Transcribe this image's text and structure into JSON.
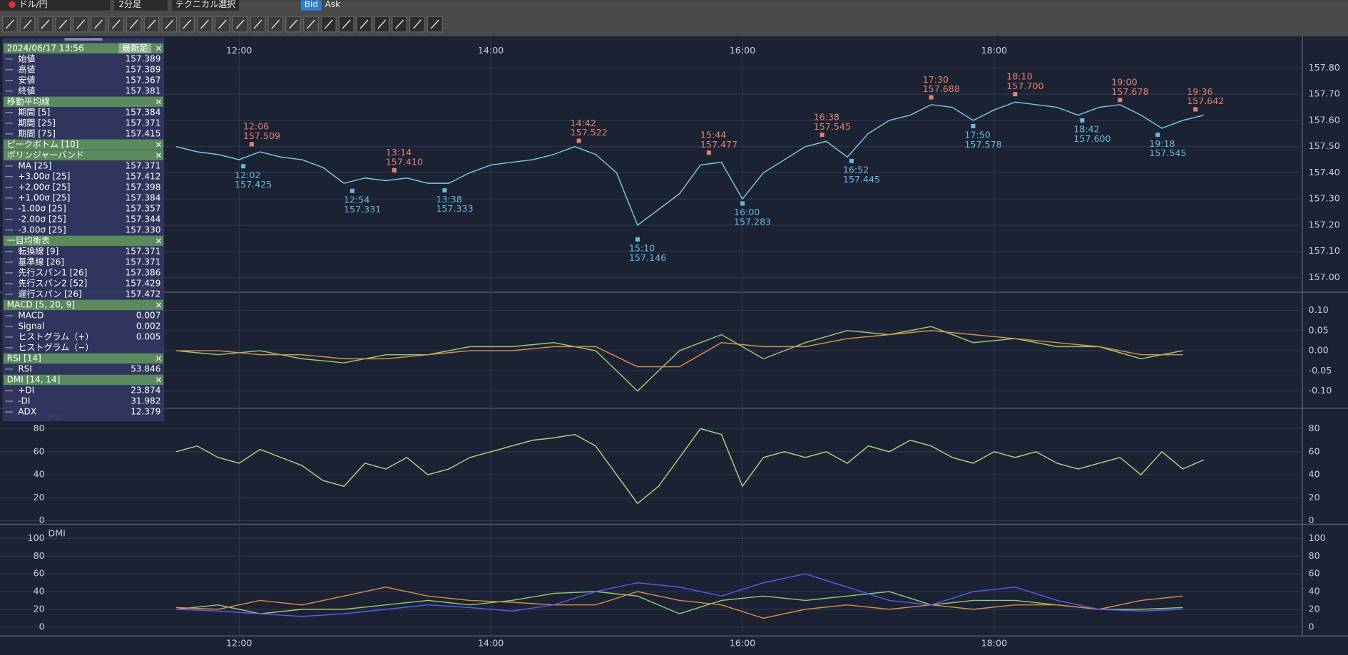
{
  "toolbar": {
    "symbol": "ドル/円",
    "timeframe": "2分足",
    "technical": "テクニカル選択",
    "bid": "Bid",
    "ask": "Ask"
  },
  "info_panel": {
    "sections": [
      {
        "title": "2024/06/17 13:56",
        "badge": "最新足",
        "rows": [
          {
            "label": "始値",
            "value": "157.389"
          },
          {
            "label": "高値",
            "value": "157.389"
          },
          {
            "label": "安値",
            "value": "157.367"
          },
          {
            "label": "終値",
            "value": "157.381"
          }
        ]
      },
      {
        "title": "移動平均線",
        "rows": [
          {
            "label": "期間 [5]",
            "value": "157.384"
          },
          {
            "label": "期間 [25]",
            "value": "157.371"
          },
          {
            "label": "期間 [75]",
            "value": "157.415"
          }
        ]
      },
      {
        "title": "ピークボトム [10]",
        "rows": []
      },
      {
        "title": "ボリンジャーバンド",
        "rows": [
          {
            "label": "MA [25]",
            "value": "157.371"
          },
          {
            "label": "+3.00σ [25]",
            "value": "157.412"
          },
          {
            "label": "+2.00σ [25]",
            "value": "157.398"
          },
          {
            "label": "+1.00σ [25]",
            "value": "157.384"
          },
          {
            "label": "-1.00σ [25]",
            "value": "157.357"
          },
          {
            "label": "-2.00σ [25]",
            "value": "157.344"
          },
          {
            "label": "-3.00σ [25]",
            "value": "157.330"
          }
        ]
      },
      {
        "title": "一目均衡表",
        "rows": [
          {
            "label": "転換線 [9]",
            "value": "157.371"
          },
          {
            "label": "基準線 [26]",
            "value": "157.371"
          },
          {
            "label": "先行スパン1 [26]",
            "value": "157.386"
          },
          {
            "label": "先行スパン2 [52]",
            "value": "157.429"
          },
          {
            "label": "遅行スパン [26]",
            "value": "157.472"
          }
        ]
      },
      {
        "title": "MACD [5, 20, 9]",
        "rows": [
          {
            "label": "MACD",
            "value": "0.007"
          },
          {
            "label": "Signal",
            "value": "0.002"
          },
          {
            "label": "ヒストグラム（+）",
            "value": "0.005"
          },
          {
            "label": "ヒストグラム（−）"
          }
        ]
      },
      {
        "title": "RSI [14]",
        "rows": [
          {
            "label": "RSI",
            "value": "53.846"
          }
        ]
      },
      {
        "title": "DMI [14, 14]",
        "rows": [
          {
            "label": "+DI",
            "value": "23.874"
          },
          {
            "label": "-DI",
            "value": "31.982"
          },
          {
            "label": "ADX",
            "value": "12.379"
          }
        ]
      }
    ]
  },
  "chart_data": [
    {
      "type": "line",
      "xlim": [
        "10:06",
        "20:27"
      ],
      "xticks": [
        "12:00",
        "14:00",
        "16:00",
        "18:00"
      ],
      "x": [
        "11:30",
        "11:40",
        "11:50",
        "12:00",
        "12:10",
        "12:20",
        "12:30",
        "12:40",
        "12:50",
        "13:00",
        "13:10",
        "13:20",
        "13:30",
        "13:40",
        "13:50",
        "14:00",
        "14:10",
        "14:20",
        "14:30",
        "14:40",
        "14:50",
        "15:00",
        "15:10",
        "15:20",
        "15:30",
        "15:40",
        "15:50",
        "16:00",
        "16:10",
        "16:20",
        "16:30",
        "16:40",
        "16:50",
        "17:00",
        "17:10",
        "17:20",
        "17:30",
        "17:40",
        "17:50",
        "18:00",
        "18:10",
        "18:20",
        "18:30",
        "18:40",
        "18:50",
        "19:00",
        "19:10",
        "19:20",
        "19:30",
        "19:40"
      ],
      "series": [
        {
          "color": "#7ec8e3",
          "values": [
            157.5,
            157.48,
            157.47,
            157.45,
            157.48,
            157.46,
            157.45,
            157.42,
            157.36,
            157.38,
            157.37,
            157.38,
            157.36,
            157.36,
            157.4,
            157.43,
            157.44,
            157.45,
            157.47,
            157.5,
            157.47,
            157.4,
            157.2,
            157.26,
            157.32,
            157.43,
            157.44,
            157.3,
            157.4,
            157.45,
            157.5,
            157.52,
            157.46,
            157.55,
            157.6,
            157.62,
            157.66,
            157.65,
            157.6,
            157.64,
            157.67,
            157.66,
            157.65,
            157.62,
            157.65,
            157.66,
            157.62,
            157.57,
            157.6,
            157.62
          ]
        }
      ],
      "ylim": [
        156.944,
        157.921
      ],
      "yticks": [
        {
          "value": 157.8,
          "label": "157.80"
        },
        {
          "value": 157.7,
          "label": "157.70"
        },
        {
          "value": 157.6,
          "label": "157.60"
        },
        {
          "value": 157.5,
          "label": "157.50"
        },
        {
          "value": 157.4,
          "label": "157.40"
        },
        {
          "value": 157.3,
          "label": "157.30"
        },
        {
          "value": 157.2,
          "label": "157.20"
        },
        {
          "value": 157.1,
          "label": "157.10"
        },
        {
          "value": 157,
          "label": "157.00"
        }
      ],
      "peaks": [
        {
          "time": "12:06",
          "price": "157.509"
        },
        {
          "time": "13:14",
          "price": "157.410"
        },
        {
          "time": "14:42",
          "price": "157.522"
        },
        {
          "time": "15:44",
          "price": "157.477"
        },
        {
          "time": "16:38",
          "price": "157.545"
        },
        {
          "time": "17:30",
          "price": "157.688"
        },
        {
          "time": "18:10",
          "price": "157.700"
        },
        {
          "time": "19:00",
          "price": "157.678"
        },
        {
          "time": "19:36",
          "price": "157.642"
        }
      ],
      "bottoms": [
        {
          "time": "12:02",
          "price": "157.425"
        },
        {
          "time": "12:54",
          "price": "157.331"
        },
        {
          "time": "13:38",
          "price": "157.333"
        },
        {
          "time": "15:10",
          "price": "157.146"
        },
        {
          "time": "16:00",
          "price": "157.283"
        },
        {
          "time": "16:52",
          "price": "157.445"
        },
        {
          "time": "17:50",
          "price": "157.578"
        },
        {
          "time": "18:42",
          "price": "157.600"
        },
        {
          "time": "19:18",
          "price": "157.545"
        }
      ]
    },
    {
      "type": "line",
      "x": [
        "11:30",
        "11:50",
        "12:10",
        "12:30",
        "12:50",
        "13:10",
        "13:30",
        "13:50",
        "14:10",
        "14:30",
        "14:50",
        "15:10",
        "15:30",
        "15:50",
        "16:10",
        "16:30",
        "16:50",
        "17:10",
        "17:30",
        "17:50",
        "18:10",
        "18:30",
        "18:50",
        "19:10",
        "19:30"
      ],
      "series": [
        {
          "color": "#9acd6a",
          "values": [
            0.0,
            -0.01,
            0.0,
            -0.02,
            -0.03,
            -0.01,
            -0.01,
            0.01,
            0.01,
            0.02,
            0.0,
            -0.1,
            0.0,
            0.04,
            -0.02,
            0.02,
            0.05,
            0.04,
            0.06,
            0.02,
            0.03,
            0.01,
            0.01,
            -0.02,
            0.0
          ]
        },
        {
          "color": "#e0904a",
          "values": [
            0.0,
            0.0,
            -0.01,
            -0.01,
            -0.02,
            -0.02,
            -0.01,
            0.0,
            0.0,
            0.01,
            0.01,
            -0.04,
            -0.04,
            0.02,
            0.01,
            0.01,
            0.03,
            0.04,
            0.05,
            0.04,
            0.03,
            0.02,
            0.01,
            -0.01,
            -0.01
          ]
        }
      ],
      "ylim": [
        -0.143,
        0.143
      ],
      "yticks": [
        {
          "value": 0.1,
          "label": "0.10"
        },
        {
          "value": 0.05,
          "label": "0.05"
        },
        {
          "value": 0,
          "label": "0.00"
        },
        {
          "value": -0.05,
          "label": "-0.05"
        },
        {
          "value": -0.1,
          "label": "-0.10"
        }
      ]
    },
    {
      "type": "line",
      "title": "RSI",
      "x": [
        "11:30",
        "11:40",
        "11:50",
        "12:00",
        "12:10",
        "12:20",
        "12:30",
        "12:40",
        "12:50",
        "13:00",
        "13:10",
        "13:20",
        "13:30",
        "13:40",
        "13:50",
        "14:00",
        "14:10",
        "14:20",
        "14:30",
        "14:40",
        "14:50",
        "15:00",
        "15:10",
        "15:20",
        "15:30",
        "15:40",
        "15:50",
        "16:00",
        "16:10",
        "16:20",
        "16:30",
        "16:40",
        "16:50",
        "17:00",
        "17:10",
        "17:20",
        "17:30",
        "17:40",
        "17:50",
        "18:00",
        "18:10",
        "18:20",
        "18:30",
        "18:40",
        "18:50",
        "19:00",
        "19:10",
        "19:20",
        "19:30",
        "19:40"
      ],
      "series": [
        {
          "color": "#a8d878",
          "values": [
            60,
            65,
            55,
            50,
            62,
            55,
            48,
            35,
            30,
            50,
            45,
            55,
            40,
            45,
            55,
            60,
            65,
            70,
            72,
            75,
            65,
            40,
            15,
            30,
            55,
            80,
            75,
            30,
            55,
            60,
            55,
            60,
            50,
            65,
            60,
            70,
            65,
            55,
            50,
            60,
            55,
            60,
            50,
            45,
            50,
            55,
            40,
            60,
            45,
            53
          ]
        }
      ],
      "ylim": [
        -3,
        97
      ],
      "yticks": [
        0,
        20,
        40,
        60,
        80
      ]
    },
    {
      "type": "line",
      "title": "DMI",
      "x": [
        "11:30",
        "11:50",
        "12:10",
        "12:30",
        "12:50",
        "13:10",
        "13:30",
        "13:50",
        "14:10",
        "14:30",
        "14:50",
        "15:10",
        "15:30",
        "15:50",
        "16:10",
        "16:30",
        "16:50",
        "17:10",
        "17:30",
        "17:50",
        "18:10",
        "18:30",
        "18:50",
        "19:10",
        "19:30"
      ],
      "series": [
        {
          "color": "#8fcf6f",
          "values": [
            20,
            25,
            15,
            20,
            20,
            25,
            30,
            25,
            30,
            38,
            40,
            35,
            15,
            30,
            35,
            30,
            35,
            40,
            25,
            30,
            30,
            25,
            20,
            20,
            22
          ]
        },
        {
          "color": "#e08a40",
          "values": [
            22,
            20,
            30,
            25,
            35,
            45,
            35,
            30,
            28,
            25,
            25,
            40,
            30,
            25,
            10,
            20,
            25,
            20,
            25,
            20,
            25,
            25,
            20,
            30,
            35
          ]
        },
        {
          "color": "#5a5af0",
          "values": [
            20,
            18,
            15,
            12,
            15,
            20,
            25,
            22,
            18,
            25,
            40,
            50,
            45,
            35,
            50,
            60,
            45,
            30,
            25,
            40,
            45,
            30,
            20,
            18,
            20
          ]
        }
      ],
      "ylim": [
        -10,
        115
      ],
      "yticks": [
        0,
        20,
        40,
        60,
        80,
        100
      ]
    }
  ]
}
